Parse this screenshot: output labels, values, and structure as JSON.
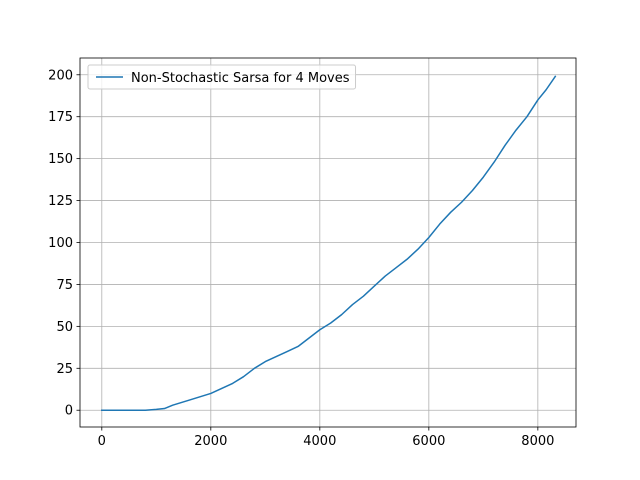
{
  "chart_data": {
    "type": "line",
    "title": "",
    "xlabel": "",
    "ylabel": "",
    "xlim": [
      -400,
      8700
    ],
    "ylim": [
      -10,
      210
    ],
    "xticks": [
      0,
      2000,
      4000,
      6000,
      8000
    ],
    "yticks": [
      0,
      25,
      50,
      75,
      100,
      125,
      150,
      175,
      200
    ],
    "grid": true,
    "legend": {
      "location": "upper left"
    },
    "colors": {
      "series": "#1f77b4",
      "grid": "#b0b0b0",
      "axis": "#000000"
    },
    "series": [
      {
        "name": "Non-Stochastic Sarsa for 4 Moves",
        "x": [
          0,
          200,
          400,
          600,
          800,
          1000,
          1150,
          1300,
          1450,
          1600,
          1800,
          2000,
          2200,
          2400,
          2600,
          2800,
          3000,
          3200,
          3400,
          3600,
          3800,
          4000,
          4200,
          4400,
          4600,
          4800,
          5000,
          5200,
          5400,
          5600,
          5800,
          6000,
          6200,
          6400,
          6600,
          6800,
          7000,
          7200,
          7400,
          7600,
          7800,
          8000,
          8150,
          8320
        ],
        "values": [
          0,
          0,
          0,
          0,
          0,
          0.5,
          1,
          3,
          4.5,
          6,
          8,
          10,
          13,
          16,
          20,
          25,
          29,
          32,
          35,
          38,
          43,
          48,
          52,
          57,
          63,
          68,
          74,
          80,
          85,
          90,
          96,
          103,
          111,
          118,
          124,
          131,
          139,
          148,
          158,
          167,
          175,
          185,
          191,
          199
        ]
      }
    ]
  }
}
